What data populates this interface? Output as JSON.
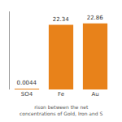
{
  "chart_data": {
    "type": "bar",
    "categories": [
      "SO4",
      "Fe",
      "Au"
    ],
    "values": [
      0.0044,
      22.34,
      22.86
    ],
    "value_labels": [
      "0.0044",
      "22.34",
      "22.86"
    ],
    "data_labels": true,
    "color": "#E8821A",
    "ylim": [
      0,
      27
    ],
    "yticks": [],
    "tick_labels": "x",
    "grid": false,
    "annotations": [
      "rison between the net concentrations of Gold, Iron and S"
    ]
  }
}
